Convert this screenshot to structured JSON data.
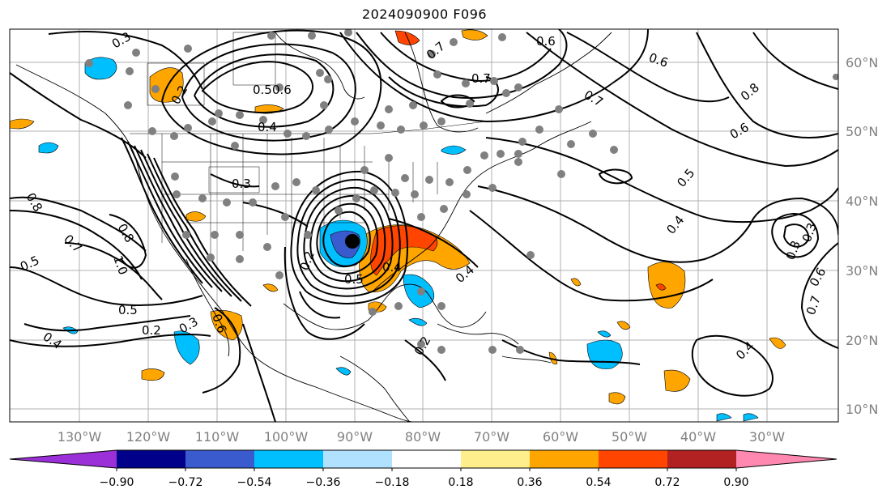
{
  "title": "2024090900 F096",
  "lon_labels": [
    "130°W",
    "120°W",
    "110°W",
    "100°W",
    "90°W",
    "80°W",
    "70°W",
    "60°W",
    "50°W",
    "40°W",
    "30°W"
  ],
  "lat_labels": [
    "60°N",
    "50°N",
    "40°N",
    "30°N",
    "20°N",
    "10°N"
  ],
  "colorbar": {
    "colors": [
      "#9b30d9",
      "#00008b",
      "#3a5bcd",
      "#00bfff",
      "#b0e2ff",
      "#ffffff",
      "#ffee8c",
      "#ffa500",
      "#ff4500",
      "#b22222",
      "#ff88b0"
    ],
    "tick_labels": [
      "−0.90",
      "−0.72",
      "−0.54",
      "−0.36",
      "−0.18",
      "0.18",
      "0.36",
      "0.54",
      "0.72",
      "0.90"
    ]
  },
  "contour_labels": [
    "0.3",
    "0.6",
    "0.7",
    "0.5",
    "0.4",
    "0.8",
    "0.6",
    "0.7",
    "0.2",
    "0.8",
    "0.6",
    "0.5",
    "0.3",
    "0.4",
    "0.8",
    "0.7",
    "0.5",
    "1.0",
    "0.6",
    "0.5",
    "0.2",
    "0.3",
    "0.4",
    "0.4",
    "0.5",
    "0.7",
    "0.2",
    "0.2",
    "0.4",
    "0.3",
    "0.6",
    "0.7",
    "0.4",
    "0.3",
    "0.6"
  ],
  "colors": {
    "land_lines": "#000000",
    "grid": "#b0b0b0",
    "station": "#808080",
    "label": "#808080"
  }
}
